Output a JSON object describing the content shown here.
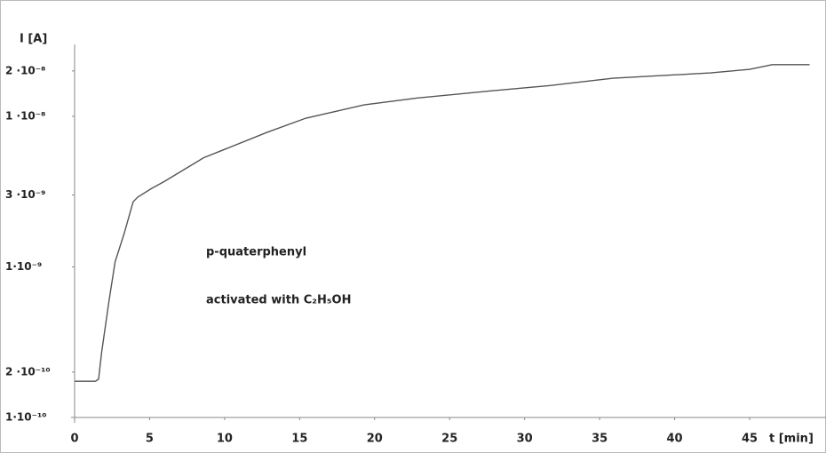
{
  "chart_data": {
    "type": "line",
    "y_label": "I [A]",
    "x_label": "t [min]",
    "annotations": [
      "p-quaterphenyl",
      "activated with C₂H₅OH"
    ],
    "log_scale_y": true,
    "grid": false,
    "color": "#555555",
    "x": [
      0,
      1.4,
      1.6,
      1.8,
      2.3,
      2.7,
      3.3,
      3.9,
      4.2,
      5.1,
      6,
      8.6,
      12.8,
      15.4,
      19.3,
      22.8,
      27.6,
      31.7,
      35.9,
      42.4,
      45,
      46.5,
      49
    ],
    "values": [
      1.74e-10,
      1.74e-10,
      1.8e-10,
      2.7e-10,
      6e-10,
      1.08e-09,
      1.66e-09,
      2.7e-09,
      2.9e-09,
      3.3e-09,
      3.7e-09,
      5.3e-09,
      7.8e-09,
      9.7e-09,
      1.19e-08,
      1.32e-08,
      1.47e-08,
      1.6e-08,
      1.79e-08,
      1.94e-08,
      2.05e-08,
      2.2e-08,
      2.2e-08
    ],
    "xlim": [
      0,
      49.5
    ],
    "xticks": [
      0,
      5,
      10,
      15,
      20,
      25,
      30,
      35,
      40,
      45
    ],
    "ylim": [
      1e-10,
      3e-08
    ],
    "yticks": [
      {
        "value": 1e-10,
        "label": "1·10⁻¹⁰"
      },
      {
        "value": 2e-10,
        "label": "2 ·10⁻¹⁰"
      },
      {
        "value": 1e-09,
        "label": "1·10⁻⁹"
      },
      {
        "value": 3e-09,
        "label": "3 ·10⁻⁹"
      },
      {
        "value": 1e-08,
        "label": "1 ·10⁻⁸"
      },
      {
        "value": 2e-08,
        "label": "2 ·10⁻⁸"
      }
    ]
  }
}
